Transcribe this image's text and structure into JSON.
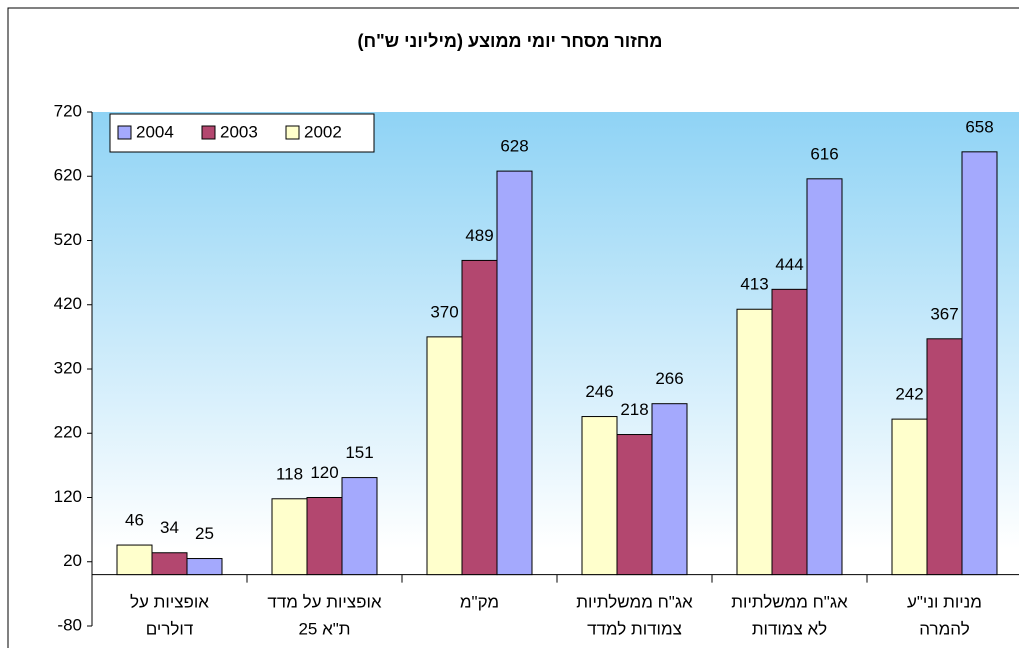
{
  "chart_data": {
    "type": "bar",
    "title": "מחזור מסחר יומי ממוצע (מיליוני ש\"ח)",
    "categories": [
      [
        "אופציות על",
        "דולרים"
      ],
      [
        "אופציות על מדד",
        "ת\"א 25"
      ],
      [
        "מק\"מ"
      ],
      [
        "אג\"ח ממשלתיות",
        "צמודות למדד"
      ],
      [
        "אג\"ח ממשלתיות",
        "לא צמודות"
      ],
      [
        "מניות וני\"ע",
        "להמרה"
      ]
    ],
    "series": [
      {
        "name": "2002",
        "color": "#FFFFCC",
        "values": [
          46,
          118,
          370,
          246,
          413,
          242
        ]
      },
      {
        "name": "2003",
        "color": "#B3476F",
        "values": [
          34,
          120,
          489,
          218,
          444,
          367
        ]
      },
      {
        "name": "2004",
        "color": "#A4A9FD",
        "values": [
          25,
          151,
          628,
          266,
          616,
          658
        ]
      }
    ],
    "ylim": [
      -80,
      720
    ],
    "yticks": [
      -80,
      20,
      120,
      220,
      320,
      420,
      520,
      620,
      720
    ],
    "legend": "top-left"
  }
}
